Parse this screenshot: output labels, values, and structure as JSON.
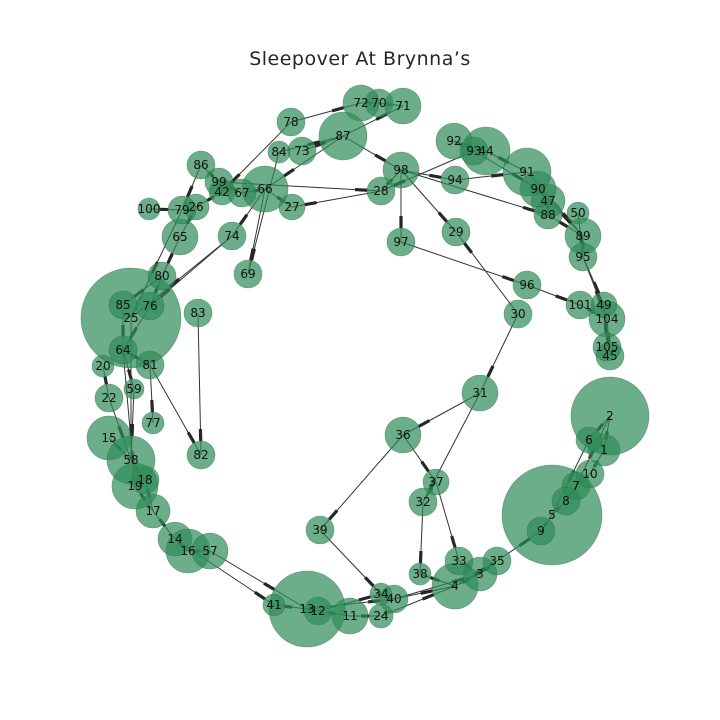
{
  "title": "Sleepover At Brynna’s",
  "colors": {
    "node_fill": "#2e8b57",
    "edge": "#333333",
    "arrow": "#262626",
    "background": "#ffffff"
  },
  "nodes": [
    {
      "id": "1",
      "size": 16
    },
    {
      "id": "2",
      "size": 39
    },
    {
      "id": "3",
      "size": 17
    },
    {
      "id": "4",
      "size": 23
    },
    {
      "id": "5",
      "size": 50
    },
    {
      "id": "6",
      "size": 13
    },
    {
      "id": "7",
      "size": 14
    },
    {
      "id": "8",
      "size": 14
    },
    {
      "id": "9",
      "size": 14
    },
    {
      "id": "10",
      "size": 14
    },
    {
      "id": "11",
      "size": 18
    },
    {
      "id": "12",
      "size": 14
    },
    {
      "id": "13",
      "size": 38
    },
    {
      "id": "14",
      "size": 17
    },
    {
      "id": "15",
      "size": 22
    },
    {
      "id": "16",
      "size": 22
    },
    {
      "id": "17",
      "size": 17
    },
    {
      "id": "18",
      "size": 14
    },
    {
      "id": "19",
      "size": 23
    },
    {
      "id": "20",
      "size": 11
    },
    {
      "id": "22",
      "size": 14
    },
    {
      "id": "24",
      "size": 12
    },
    {
      "id": "25",
      "size": 50
    },
    {
      "id": "26",
      "size": 13
    },
    {
      "id": "27",
      "size": 13
    },
    {
      "id": "28",
      "size": 14
    },
    {
      "id": "29",
      "size": 14
    },
    {
      "id": "30",
      "size": 14
    },
    {
      "id": "31",
      "size": 18
    },
    {
      "id": "32",
      "size": 14
    },
    {
      "id": "33",
      "size": 14
    },
    {
      "id": "34",
      "size": 11
    },
    {
      "id": "35",
      "size": 14
    },
    {
      "id": "36",
      "size": 18
    },
    {
      "id": "37",
      "size": 13
    },
    {
      "id": "38",
      "size": 11
    },
    {
      "id": "39",
      "size": 14
    },
    {
      "id": "40",
      "size": 14
    },
    {
      "id": "41",
      "size": 11
    },
    {
      "id": "42",
      "size": 13
    },
    {
      "id": "44",
      "size": 24
    },
    {
      "id": "45",
      "size": 14
    },
    {
      "id": "47",
      "size": 17
    },
    {
      "id": "49",
      "size": 13
    },
    {
      "id": "50",
      "size": 11
    },
    {
      "id": "57",
      "size": 18
    },
    {
      "id": "58",
      "size": 24
    },
    {
      "id": "59",
      "size": 10
    },
    {
      "id": "64",
      "size": 14
    },
    {
      "id": "65",
      "size": 18
    },
    {
      "id": "66",
      "size": 23
    },
    {
      "id": "67",
      "size": 14
    },
    {
      "id": "69",
      "size": 14
    },
    {
      "id": "70",
      "size": 14
    },
    {
      "id": "71",
      "size": 18
    },
    {
      "id": "72",
      "size": 18
    },
    {
      "id": "73",
      "size": 14
    },
    {
      "id": "74",
      "size": 14
    },
    {
      "id": "76",
      "size": 14
    },
    {
      "id": "77",
      "size": 11
    },
    {
      "id": "78",
      "size": 14
    },
    {
      "id": "79",
      "size": 14
    },
    {
      "id": "80",
      "size": 14
    },
    {
      "id": "81",
      "size": 14
    },
    {
      "id": "82",
      "size": 14
    },
    {
      "id": "83",
      "size": 14
    },
    {
      "id": "84",
      "size": 11
    },
    {
      "id": "85",
      "size": 14
    },
    {
      "id": "86",
      "size": 14
    },
    {
      "id": "87",
      "size": 24
    },
    {
      "id": "88",
      "size": 14
    },
    {
      "id": "89",
      "size": 18
    },
    {
      "id": "90",
      "size": 18
    },
    {
      "id": "91",
      "size": 24
    },
    {
      "id": "92",
      "size": 18
    },
    {
      "id": "93",
      "size": 14
    },
    {
      "id": "94",
      "size": 14
    },
    {
      "id": "95",
      "size": 14
    },
    {
      "id": "96",
      "size": 14
    },
    {
      "id": "97",
      "size": 14
    },
    {
      "id": "98",
      "size": 18
    },
    {
      "id": "99",
      "size": 14
    },
    {
      "id": "100",
      "size": 11
    },
    {
      "id": "101",
      "size": 14
    },
    {
      "id": "104",
      "size": 18
    },
    {
      "id": "105",
      "size": 14
    }
  ],
  "edges": [
    [
      "78",
      "72"
    ],
    [
      "72",
      "70"
    ],
    [
      "70",
      "71"
    ],
    [
      "87",
      "71"
    ],
    [
      "87",
      "73"
    ],
    [
      "84",
      "87"
    ],
    [
      "87",
      "98"
    ],
    [
      "87",
      "66"
    ],
    [
      "98",
      "94"
    ],
    [
      "94",
      "91"
    ],
    [
      "91",
      "89"
    ],
    [
      "92",
      "93"
    ],
    [
      "92",
      "44"
    ],
    [
      "44",
      "91"
    ],
    [
      "93",
      "90"
    ],
    [
      "90",
      "89"
    ],
    [
      "90",
      "47"
    ],
    [
      "47",
      "88"
    ],
    [
      "88",
      "89"
    ],
    [
      "89",
      "95"
    ],
    [
      "50",
      "95"
    ],
    [
      "95",
      "49"
    ],
    [
      "95",
      "104"
    ],
    [
      "49",
      "105"
    ],
    [
      "104",
      "45"
    ],
    [
      "96",
      "101"
    ],
    [
      "101",
      "104"
    ],
    [
      "97",
      "96"
    ],
    [
      "98",
      "97"
    ],
    [
      "98",
      "29"
    ],
    [
      "28",
      "98"
    ],
    [
      "28",
      "27"
    ],
    [
      "27",
      "66"
    ],
    [
      "66",
      "67"
    ],
    [
      "67",
      "99"
    ],
    [
      "99",
      "86"
    ],
    [
      "86",
      "79"
    ],
    [
      "79",
      "100"
    ],
    [
      "99",
      "42"
    ],
    [
      "42",
      "26"
    ],
    [
      "26",
      "65"
    ],
    [
      "65",
      "80"
    ],
    [
      "80",
      "76"
    ],
    [
      "80",
      "85"
    ],
    [
      "66",
      "69"
    ],
    [
      "84",
      "69"
    ],
    [
      "66",
      "74"
    ],
    [
      "74",
      "76"
    ],
    [
      "74",
      "25"
    ],
    [
      "99",
      "28"
    ],
    [
      "93",
      "28"
    ],
    [
      "78",
      "42"
    ],
    [
      "79",
      "25"
    ],
    [
      "76",
      "64"
    ],
    [
      "85",
      "64"
    ],
    [
      "64",
      "59"
    ],
    [
      "64",
      "81"
    ],
    [
      "81",
      "82"
    ],
    [
      "83",
      "82"
    ],
    [
      "81",
      "77"
    ],
    [
      "20",
      "22"
    ],
    [
      "22",
      "58"
    ],
    [
      "25",
      "58"
    ],
    [
      "64",
      "19"
    ],
    [
      "59",
      "58"
    ],
    [
      "15",
      "58"
    ],
    [
      "58",
      "18"
    ],
    [
      "19",
      "17"
    ],
    [
      "18",
      "17"
    ],
    [
      "17",
      "14"
    ],
    [
      "14",
      "16"
    ],
    [
      "16",
      "57"
    ],
    [
      "57",
      "13"
    ],
    [
      "14",
      "41"
    ],
    [
      "41",
      "13"
    ],
    [
      "13",
      "12"
    ],
    [
      "12",
      "11"
    ],
    [
      "11",
      "24"
    ],
    [
      "24",
      "4"
    ],
    [
      "34",
      "40"
    ],
    [
      "40",
      "4"
    ],
    [
      "4",
      "3"
    ],
    [
      "3",
      "35"
    ],
    [
      "33",
      "3"
    ],
    [
      "35",
      "9"
    ],
    [
      "9",
      "5"
    ],
    [
      "5",
      "8"
    ],
    [
      "8",
      "7"
    ],
    [
      "7",
      "10"
    ],
    [
      "10",
      "1"
    ],
    [
      "1",
      "2"
    ],
    [
      "2",
      "6"
    ],
    [
      "7",
      "2"
    ],
    [
      "6",
      "5"
    ],
    [
      "38",
      "4"
    ],
    [
      "32",
      "38"
    ],
    [
      "37",
      "32"
    ],
    [
      "37",
      "33"
    ],
    [
      "36",
      "37"
    ],
    [
      "36",
      "39"
    ],
    [
      "31",
      "36"
    ],
    [
      "30",
      "31"
    ],
    [
      "30",
      "29"
    ],
    [
      "31",
      "32"
    ],
    [
      "39",
      "34"
    ],
    [
      "12",
      "34"
    ],
    [
      "13",
      "40"
    ],
    [
      "40",
      "3"
    ],
    [
      "4",
      "35"
    ],
    [
      "98",
      "88"
    ]
  ]
}
